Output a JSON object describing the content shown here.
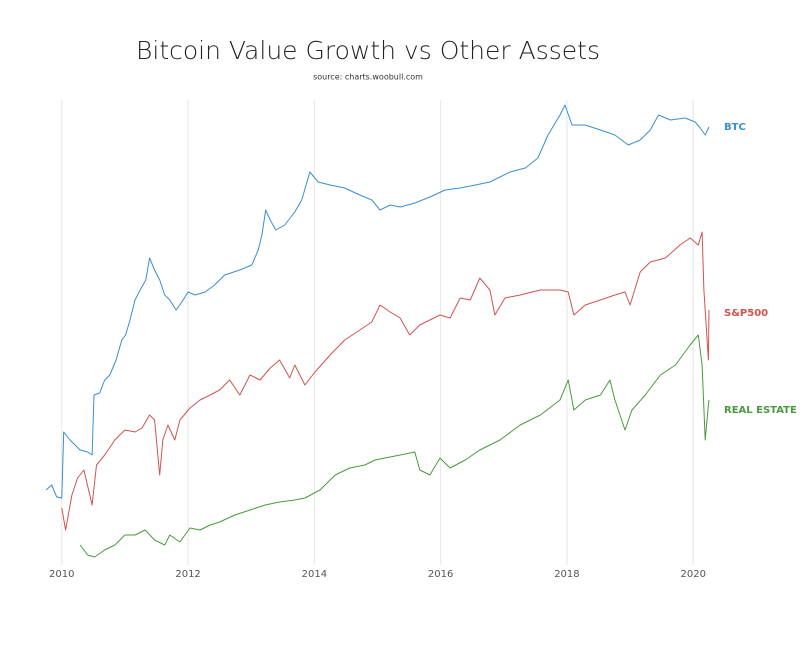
{
  "chart_data": {
    "type": "line",
    "title": "Bitcoin Value Growth vs Other Assets",
    "subtitle": "source: charts.woobull.com",
    "xlim": [
      2009.75,
      2020.25
    ],
    "xticks": [
      2010,
      2012,
      2014,
      2016,
      2018,
      2020
    ],
    "ylim": [
      0,
      475
    ],
    "grid": true,
    "series": [
      {
        "name": "BTC",
        "color": "#3a8fd0",
        "x": [
          2009.75,
          2009.84,
          2009.92,
          2010.0,
          2010.03,
          2010.13,
          2010.29,
          2010.41,
          2010.48,
          2010.51,
          2010.6,
          2010.68,
          2010.76,
          2010.86,
          2010.95,
          2011.01,
          2011.08,
          2011.16,
          2011.24,
          2011.33,
          2011.39,
          2011.47,
          2011.55,
          2011.63,
          2011.71,
          2011.81,
          2011.9,
          2012.0,
          2012.11,
          2012.27,
          2012.42,
          2012.58,
          2012.82,
          2013.01,
          2013.11,
          2013.17,
          2013.23,
          2013.3,
          2013.39,
          2013.53,
          2013.69,
          2013.8,
          2013.93,
          2014.06,
          2014.25,
          2014.48,
          2014.72,
          2014.91,
          2015.04,
          2015.2,
          2015.36,
          2015.59,
          2015.83,
          2016.07,
          2016.31,
          2016.55,
          2016.78,
          2017.1,
          2017.34,
          2017.54,
          2017.7,
          2017.89,
          2017.97,
          2018.08,
          2018.29,
          2018.53,
          2018.76,
          2018.97,
          2019.16,
          2019.32,
          2019.45,
          2019.64,
          2019.87,
          2020.03,
          2020.11,
          2020.19,
          2020.25
        ],
        "values": [
          85,
          90,
          78,
          77,
          143,
          135,
          125,
          123,
          120,
          180,
          182,
          195,
          200,
          215,
          235,
          240,
          255,
          275,
          285,
          295,
          317,
          305,
          295,
          280,
          275,
          265,
          273,
          283,
          280,
          283,
          290,
          300,
          305,
          310,
          325,
          340,
          365,
          355,
          345,
          350,
          363,
          375,
          403,
          393,
          390,
          387,
          380,
          375,
          365,
          370,
          368,
          372,
          378,
          385,
          387,
          390,
          393,
          403,
          407,
          417,
          440,
          460,
          470,
          450,
          450,
          445,
          440,
          430,
          435,
          445,
          460,
          455,
          457,
          453,
          447,
          440,
          448
        ]
      },
      {
        "name": "S&P500",
        "color": "#d0534f",
        "x": [
          2010.0,
          2010.06,
          2010.16,
          2010.25,
          2010.35,
          2010.48,
          2010.55,
          2010.68,
          2010.84,
          2011.0,
          2011.16,
          2011.27,
          2011.39,
          2011.47,
          2011.55,
          2011.6,
          2011.68,
          2011.79,
          2011.87,
          2012.03,
          2012.19,
          2012.35,
          2012.5,
          2012.66,
          2012.82,
          2012.98,
          2013.14,
          2013.3,
          2013.45,
          2013.61,
          2013.69,
          2013.85,
          2014.01,
          2014.25,
          2014.48,
          2014.72,
          2014.91,
          2015.04,
          2015.2,
          2015.36,
          2015.51,
          2015.67,
          2015.83,
          2015.99,
          2016.15,
          2016.31,
          2016.47,
          2016.62,
          2016.78,
          2016.86,
          2017.02,
          2017.26,
          2017.58,
          2017.89,
          2018.02,
          2018.11,
          2018.29,
          2018.53,
          2018.76,
          2018.92,
          2019.0,
          2019.16,
          2019.32,
          2019.56,
          2019.79,
          2019.95,
          2020.08,
          2020.14,
          2020.17,
          2020.24,
          2020.25
        ],
        "values": [
          67,
          45,
          80,
          97,
          105,
          70,
          110,
          120,
          135,
          145,
          143,
          147,
          160,
          155,
          100,
          135,
          150,
          135,
          155,
          167,
          175,
          180,
          185,
          195,
          180,
          200,
          195,
          207,
          215,
          197,
          210,
          190,
          203,
          220,
          235,
          245,
          253,
          270,
          263,
          257,
          240,
          250,
          255,
          260,
          257,
          277,
          275,
          297,
          285,
          260,
          277,
          280,
          285,
          285,
          283,
          260,
          270,
          275,
          280,
          283,
          270,
          303,
          313,
          317,
          330,
          337,
          330,
          343,
          285,
          215,
          265
        ]
      },
      {
        "name": "REAL ESTATE",
        "color": "#4a9a3e",
        "x": [
          2010.29,
          2010.41,
          2010.52,
          2010.68,
          2010.84,
          2011.0,
          2011.16,
          2011.32,
          2011.47,
          2011.63,
          2011.71,
          2011.87,
          2012.03,
          2012.19,
          2012.35,
          2012.5,
          2012.74,
          2012.98,
          2013.22,
          2013.45,
          2013.69,
          2013.85,
          2014.09,
          2014.33,
          2014.56,
          2014.8,
          2014.96,
          2015.12,
          2015.36,
          2015.59,
          2015.67,
          2015.83,
          2015.99,
          2016.15,
          2016.39,
          2016.62,
          2016.94,
          2017.26,
          2017.58,
          2017.89,
          2018.02,
          2018.11,
          2018.29,
          2018.53,
          2018.68,
          2018.76,
          2018.92,
          2019.03,
          2019.24,
          2019.48,
          2019.72,
          2019.95,
          2020.08,
          2020.14,
          2020.19,
          2020.24,
          2020.25
        ],
        "values": [
          30,
          20,
          18,
          25,
          30,
          40,
          40,
          45,
          35,
          30,
          40,
          33,
          47,
          45,
          50,
          53,
          60,
          65,
          70,
          73,
          75,
          77,
          85,
          100,
          107,
          110,
          115,
          117,
          120,
          123,
          105,
          100,
          117,
          107,
          115,
          125,
          135,
          150,
          160,
          175,
          195,
          165,
          175,
          180,
          195,
          175,
          145,
          165,
          180,
          200,
          210,
          230,
          240,
          210,
          135,
          170,
          175
        ]
      }
    ]
  }
}
